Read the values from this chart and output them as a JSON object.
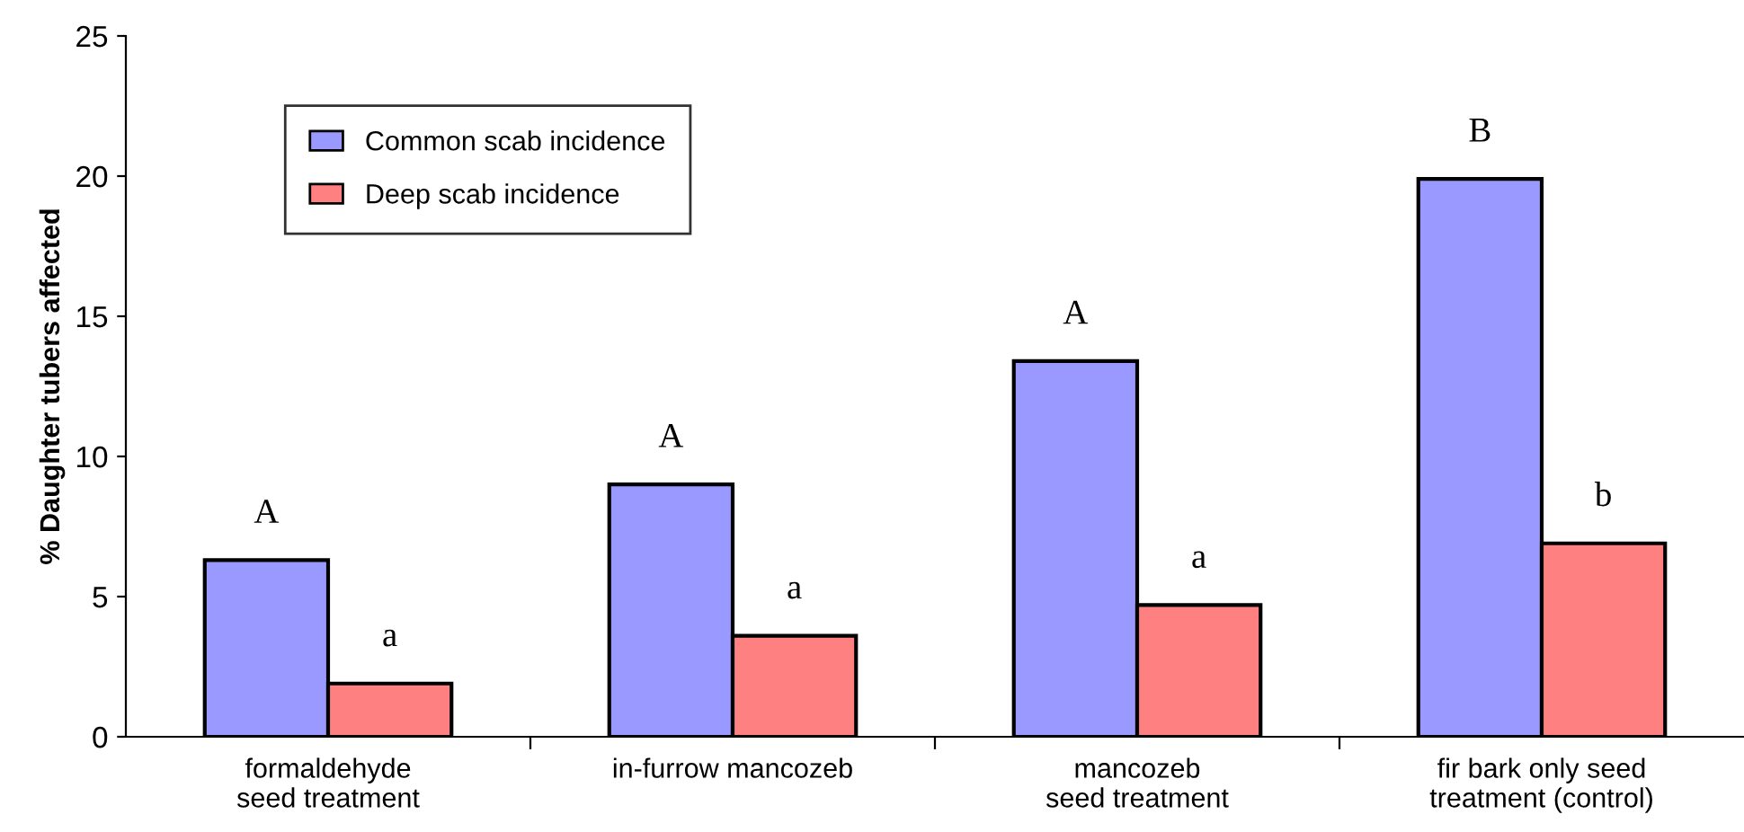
{
  "chart_data": {
    "type": "bar",
    "ylabel": "% Daughter tubers affected",
    "categories": [
      "formaldehyde\nseed treatment",
      "in-furrow mancozeb",
      "mancozeb\nseed treatment",
      "fir bark only seed\ntreatment (control)"
    ],
    "series": [
      {
        "name": "Common scab incidence",
        "color": "#9999ff",
        "values": [
          6.3,
          9.0,
          13.4,
          19.9
        ]
      },
      {
        "name": "Deep scab incidence",
        "color": "#ff8080",
        "values": [
          1.9,
          3.6,
          4.7,
          6.9
        ]
      }
    ],
    "ylim": [
      0,
      25
    ],
    "yticks": [
      0,
      5,
      10,
      15,
      20,
      25
    ],
    "grid": false,
    "legend": "top left",
    "annotations": [
      "A",
      "a",
      "A",
      "a",
      "A",
      "a",
      "B",
      "b"
    ]
  }
}
